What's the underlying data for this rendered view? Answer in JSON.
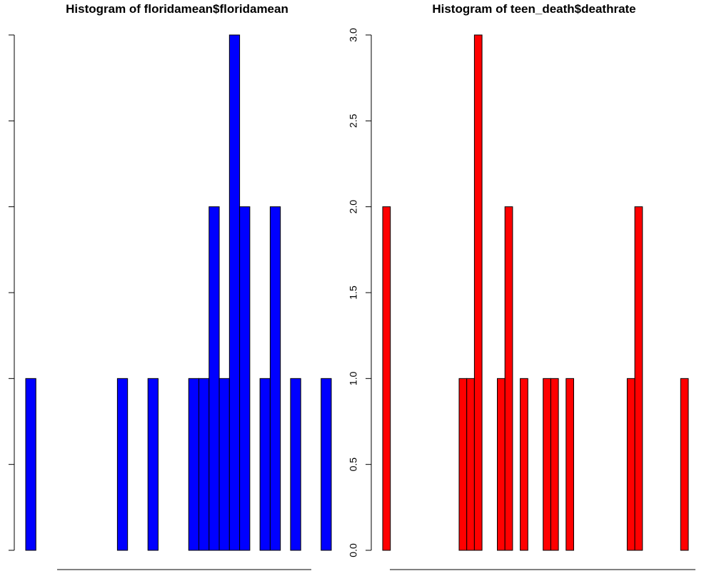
{
  "chart_data": [
    {
      "type": "bar",
      "title": "Histogram of floridamean$floridamean",
      "xlabel": "",
      "ylabel": "",
      "ylim": [
        0,
        3
      ],
      "y_ticks": [
        "",
        "",
        "",
        "",
        "",
        ""
      ],
      "grid": false,
      "bar_color": "#0000ff",
      "values": [
        1,
        0,
        0,
        0,
        0,
        0,
        0,
        0,
        0,
        1,
        0,
        0,
        1,
        0,
        0,
        0,
        1,
        1,
        2,
        1,
        3,
        2,
        0,
        1,
        2,
        0,
        1,
        0,
        0,
        1
      ]
    },
    {
      "type": "bar",
      "title": "Histogram of teen_death$deathrate",
      "xlabel": "",
      "ylabel": "",
      "ylim": [
        0,
        3
      ],
      "y_ticks": [
        "0.0",
        "0.5",
        "1.0",
        "1.5",
        "2.0",
        "2.5",
        "3.0"
      ],
      "grid": false,
      "bar_color": "#ff0000",
      "values": [
        2,
        0,
        0,
        0,
        0,
        0,
        0,
        0,
        0,
        0,
        1,
        1,
        3,
        0,
        0,
        1,
        2,
        0,
        1,
        0,
        0,
        1,
        1,
        0,
        1,
        0,
        0,
        0,
        0,
        0,
        0,
        0,
        1,
        2,
        0,
        0,
        0,
        0,
        0,
        1
      ]
    }
  ]
}
